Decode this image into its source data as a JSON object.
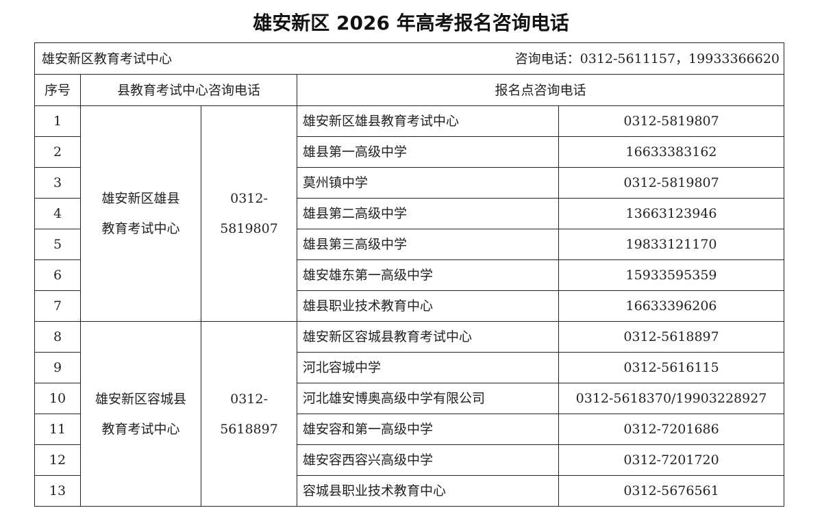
{
  "title": "雄安新区 2026 年高考报名咨询电话",
  "info": {
    "org": "雄安新区教育考试中心",
    "phone": "咨询电话：0312-5611157，19933366620"
  },
  "headers": {
    "seq": "序号",
    "county": "县教育考试中心咨询电话",
    "site": "报名点咨询电话"
  },
  "groups": [
    {
      "name_line1": "雄安新区雄县",
      "name_line2": "教育考试中心",
      "phone_line1": "0312-",
      "phone_line2": "5819807",
      "rows": [
        {
          "no": "1",
          "site": "雄安新区雄县教育考试中心",
          "phone": "0312-5819807"
        },
        {
          "no": "2",
          "site": "雄县第一高级中学",
          "phone": "16633383162"
        },
        {
          "no": "3",
          "site": "莫州镇中学",
          "phone": "0312-5819807"
        },
        {
          "no": "4",
          "site": "雄县第二高级中学",
          "phone": "13663123946"
        },
        {
          "no": "5",
          "site": "雄县第三高级中学",
          "phone": "19833121170"
        },
        {
          "no": "6",
          "site": "雄安雄东第一高级中学",
          "phone": "15933595359"
        },
        {
          "no": "7",
          "site": "雄县职业技术教育中心",
          "phone": "16633396206"
        }
      ]
    },
    {
      "name_line1": "雄安新区容城县",
      "name_line2": "教育考试中心",
      "phone_line1": "0312-",
      "phone_line2": "5618897",
      "rows": [
        {
          "no": "8",
          "site": "雄安新区容城县教育考试中心",
          "phone": "0312-5618897"
        },
        {
          "no": "9",
          "site": "河北容城中学",
          "phone": "0312-5616115"
        },
        {
          "no": "10",
          "site": "河北雄安博奥高级中学有限公司",
          "phone": "0312-5618370/19903228927"
        },
        {
          "no": "11",
          "site": "雄安容和第一高级中学",
          "phone": "0312-7201686"
        },
        {
          "no": "12",
          "site": "雄安容西容兴高级中学",
          "phone": "0312-7201720"
        },
        {
          "no": "13",
          "site": "容城县职业技术教育中心",
          "phone": "0312-5676561"
        }
      ]
    }
  ]
}
